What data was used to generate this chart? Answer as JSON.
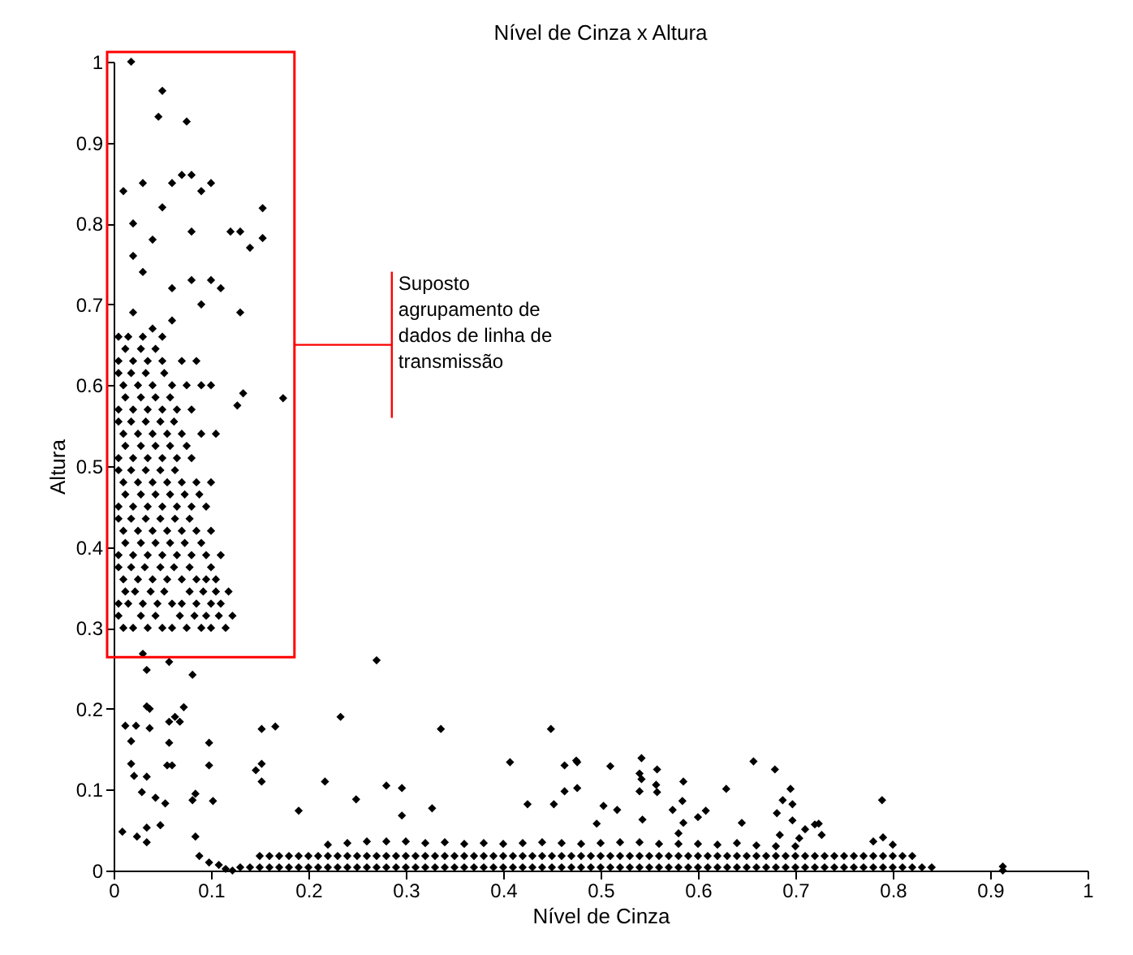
{
  "chart_data": {
    "type": "scatter",
    "title": "Nível de Cinza x Altura",
    "xlabel": "Nível de Cinza",
    "ylabel": "Altura",
    "xlim": [
      0,
      1
    ],
    "ylim": [
      0,
      1
    ],
    "xticks": [
      0,
      0.1,
      0.2,
      0.3,
      0.4,
      0.5,
      0.6,
      0.7,
      0.8,
      0.9,
      1
    ],
    "yticks": [
      0,
      0.1,
      0.2,
      0.3,
      0.4,
      0.5,
      0.6,
      0.7,
      0.8,
      0.9,
      1
    ],
    "grid": false,
    "legend": false,
    "marker": "diamond",
    "annotations": [
      "Suposto agrupamento de dados de linha de transmissão"
    ],
    "series": [
      {
        "color": "#000000",
        "x": [
          0.018,
          0.05,
          0.046,
          0.075,
          0.153,
          0.153,
          0.174,
          0.133,
          0.127,
          0.07,
          0.06,
          0.08,
          0.09,
          0.03,
          0.01,
          0.1,
          0.02,
          0.04,
          0.05,
          0.08,
          0.12,
          0.13,
          0.14,
          0.02,
          0.03,
          0.06,
          0.08,
          0.1,
          0.11,
          0.09,
          0.13,
          0.02,
          0.04,
          0.06,
          0.01,
          0.02,
          0.035,
          0.05,
          0.06,
          0.075,
          0.09,
          0.1,
          0.115,
          0.005,
          0.028,
          0.043,
          0.068,
          0.083,
          0.095,
          0.108,
          0.122,
          0.005,
          0.015,
          0.03,
          0.045,
          0.06,
          0.07,
          0.085,
          0.1,
          0.11,
          0.012,
          0.022,
          0.038,
          0.052,
          0.078,
          0.092,
          0.105,
          0.118,
          0.01,
          0.025,
          0.04,
          0.055,
          0.07,
          0.085,
          0.095,
          0.105,
          0.005,
          0.018,
          0.032,
          0.048,
          0.062,
          0.078,
          0.1,
          0.005,
          0.02,
          0.035,
          0.05,
          0.065,
          0.08,
          0.095,
          0.11,
          0.012,
          0.028,
          0.043,
          0.058,
          0.073,
          0.09,
          0.01,
          0.025,
          0.04,
          0.055,
          0.07,
          0.085,
          0.1,
          0.005,
          0.018,
          0.033,
          0.048,
          0.063,
          0.078,
          0.005,
          0.02,
          0.035,
          0.05,
          0.065,
          0.08,
          0.095,
          0.012,
          0.028,
          0.043,
          0.058,
          0.073,
          0.088,
          0.01,
          0.025,
          0.04,
          0.055,
          0.07,
          0.085,
          0.1,
          0.005,
          0.018,
          0.033,
          0.048,
          0.063,
          0.005,
          0.02,
          0.035,
          0.05,
          0.065,
          0.08,
          0.012,
          0.028,
          0.043,
          0.058,
          0.075,
          0.01,
          0.025,
          0.04,
          0.055,
          0.07,
          0.09,
          0.105,
          0.005,
          0.018,
          0.033,
          0.048,
          0.062,
          0.005,
          0.02,
          0.035,
          0.05,
          0.065,
          0.08,
          0.012,
          0.028,
          0.043,
          0.058,
          0.01,
          0.025,
          0.04,
          0.06,
          0.075,
          0.09,
          0.1,
          0.005,
          0.018,
          0.033,
          0.052,
          0.005,
          0.02,
          0.035,
          0.05,
          0.07,
          0.085,
          0.012,
          0.028,
          0.043,
          0.005,
          0.015,
          0.03,
          0.05
        ],
        "values": [
          1.0,
          0.964,
          0.932,
          0.926,
          0.819,
          0.782,
          0.584,
          0.59,
          0.575,
          0.86,
          0.85,
          0.86,
          0.84,
          0.85,
          0.84,
          0.85,
          0.8,
          0.78,
          0.82,
          0.79,
          0.79,
          0.79,
          0.77,
          0.76,
          0.74,
          0.72,
          0.73,
          0.73,
          0.72,
          0.7,
          0.69,
          0.69,
          0.67,
          0.68,
          0.3,
          0.3,
          0.3,
          0.3,
          0.3,
          0.3,
          0.3,
          0.3,
          0.3,
          0.315,
          0.315,
          0.315,
          0.315,
          0.315,
          0.315,
          0.315,
          0.315,
          0.33,
          0.33,
          0.33,
          0.33,
          0.33,
          0.33,
          0.33,
          0.33,
          0.33,
          0.345,
          0.345,
          0.345,
          0.345,
          0.345,
          0.345,
          0.345,
          0.345,
          0.36,
          0.36,
          0.36,
          0.36,
          0.36,
          0.36,
          0.36,
          0.36,
          0.375,
          0.375,
          0.375,
          0.375,
          0.375,
          0.375,
          0.375,
          0.39,
          0.39,
          0.39,
          0.39,
          0.39,
          0.39,
          0.39,
          0.39,
          0.405,
          0.405,
          0.405,
          0.405,
          0.405,
          0.405,
          0.42,
          0.42,
          0.42,
          0.42,
          0.42,
          0.42,
          0.42,
          0.435,
          0.435,
          0.435,
          0.435,
          0.435,
          0.435,
          0.45,
          0.45,
          0.45,
          0.45,
          0.45,
          0.45,
          0.45,
          0.465,
          0.465,
          0.465,
          0.465,
          0.465,
          0.465,
          0.48,
          0.48,
          0.48,
          0.48,
          0.48,
          0.48,
          0.48,
          0.495,
          0.495,
          0.495,
          0.495,
          0.495,
          0.51,
          0.51,
          0.51,
          0.51,
          0.51,
          0.51,
          0.525,
          0.525,
          0.525,
          0.525,
          0.525,
          0.54,
          0.54,
          0.54,
          0.54,
          0.54,
          0.54,
          0.54,
          0.555,
          0.555,
          0.555,
          0.555,
          0.555,
          0.57,
          0.57,
          0.57,
          0.57,
          0.57,
          0.57,
          0.585,
          0.585,
          0.585,
          0.585,
          0.6,
          0.6,
          0.6,
          0.6,
          0.6,
          0.6,
          0.6,
          0.615,
          0.615,
          0.615,
          0.615,
          0.63,
          0.63,
          0.63,
          0.63,
          0.63,
          0.63,
          0.645,
          0.645,
          0.645,
          0.66,
          0.66,
          0.66,
          0.66
        ]
      },
      {
        "color": "#000000",
        "x": [
          0.009,
          0.012,
          0.023,
          0.037,
          0.018,
          0.018,
          0.021,
          0.029,
          0.034,
          0.037,
          0.034,
          0.024,
          0.034,
          0.034,
          0.048,
          0.043,
          0.053,
          0.055,
          0.06,
          0.057,
          0.057,
          0.063,
          0.068,
          0.072,
          0.081,
          0.084,
          0.084,
          0.088,
          0.098,
          0.098,
          0.102,
          0.098,
          0.108,
          0.034,
          0.03,
          0.081,
          0.057,
          0.122,
          0.115,
          0.27,
          0.233,
          0.336,
          0.449,
          0.166,
          0.152,
          0.152,
          0.146,
          0.152,
          0.217,
          0.249,
          0.28,
          0.296,
          0.296,
          0.327,
          0.19,
          0.425,
          0.407,
          0.463,
          0.476,
          0.476,
          0.463,
          0.452,
          0.475,
          0.51,
          0.542,
          0.558,
          0.54,
          0.542,
          0.54,
          0.557,
          0.558,
          0.585,
          0.584,
          0.574,
          0.503,
          0.517,
          0.496,
          0.543,
          0.585,
          0.6,
          0.608,
          0.629,
          0.645,
          0.657,
          0.679,
          0.681,
          0.695,
          0.687,
          0.697,
          0.697,
          0.684,
          0.704,
          0.71,
          0.72,
          0.724,
          0.727,
          0.789,
          0.78,
          0.79,
          0.8,
          0.58,
          0.913,
          0.913
        ],
        "values": [
          0.048,
          0.179,
          0.179,
          0.176,
          0.16,
          0.132,
          0.117,
          0.097,
          0.116,
          0.2,
          0.203,
          0.042,
          0.053,
          0.035,
          0.056,
          0.09,
          0.083,
          0.13,
          0.13,
          0.158,
          0.184,
          0.19,
          0.184,
          0.202,
          0.087,
          0.095,
          0.042,
          0.018,
          0.158,
          0.13,
          0.086,
          0.01,
          0.007,
          0.248,
          0.268,
          0.242,
          0.258,
          0.0,
          0.002,
          0.26,
          0.19,
          0.175,
          0.175,
          0.178,
          0.175,
          0.132,
          0.124,
          0.11,
          0.11,
          0.088,
          0.105,
          0.102,
          0.068,
          0.077,
          0.074,
          0.082,
          0.134,
          0.13,
          0.134,
          0.102,
          0.098,
          0.082,
          0.136,
          0.129,
          0.139,
          0.125,
          0.12,
          0.113,
          0.098,
          0.106,
          0.097,
          0.11,
          0.086,
          0.075,
          0.08,
          0.075,
          0.058,
          0.063,
          0.059,
          0.066,
          0.074,
          0.101,
          0.059,
          0.135,
          0.125,
          0.071,
          0.101,
          0.087,
          0.082,
          0.062,
          0.044,
          0.04,
          0.051,
          0.057,
          0.058,
          0.044,
          0.087,
          0.036,
          0.041,
          0.032,
          0.046,
          0.005,
          0.0
        ]
      },
      {
        "color": "#000000",
        "x": [
          0.13,
          0.14,
          0.15,
          0.16,
          0.17,
          0.18,
          0.19,
          0.2,
          0.21,
          0.22,
          0.23,
          0.24,
          0.25,
          0.26,
          0.27,
          0.28,
          0.29,
          0.3,
          0.31,
          0.32,
          0.33,
          0.34,
          0.35,
          0.36,
          0.37,
          0.38,
          0.39,
          0.4,
          0.41,
          0.42,
          0.43,
          0.44,
          0.45,
          0.46,
          0.47,
          0.48,
          0.49,
          0.5,
          0.51,
          0.52,
          0.53,
          0.54,
          0.55,
          0.56,
          0.57,
          0.58,
          0.59,
          0.6,
          0.61,
          0.62,
          0.63,
          0.64,
          0.65,
          0.66,
          0.67,
          0.68,
          0.69,
          0.7,
          0.71,
          0.72,
          0.73,
          0.74,
          0.75,
          0.76,
          0.77,
          0.78,
          0.79,
          0.8,
          0.81,
          0.82,
          0.83,
          0.84,
          0.15,
          0.16,
          0.17,
          0.18,
          0.19,
          0.2,
          0.21,
          0.22,
          0.23,
          0.24,
          0.25,
          0.26,
          0.27,
          0.28,
          0.29,
          0.3,
          0.31,
          0.32,
          0.33,
          0.34,
          0.35,
          0.36,
          0.37,
          0.38,
          0.39,
          0.4,
          0.41,
          0.42,
          0.43,
          0.44,
          0.45,
          0.46,
          0.47,
          0.48,
          0.49,
          0.5,
          0.51,
          0.52,
          0.53,
          0.54,
          0.55,
          0.56,
          0.57,
          0.58,
          0.59,
          0.6,
          0.61,
          0.62,
          0.63,
          0.64,
          0.65,
          0.66,
          0.67,
          0.68,
          0.69,
          0.7,
          0.71,
          0.72,
          0.73,
          0.74,
          0.75,
          0.76,
          0.77,
          0.78,
          0.79,
          0.8,
          0.81,
          0.82,
          0.22,
          0.24,
          0.26,
          0.28,
          0.3,
          0.32,
          0.34,
          0.36,
          0.38,
          0.4,
          0.42,
          0.44,
          0.46,
          0.48,
          0.5,
          0.52,
          0.54,
          0.56,
          0.58,
          0.6,
          0.62,
          0.64,
          0.66,
          0.68,
          0.7
        ],
        "values": [
          0.004,
          0.004,
          0.004,
          0.004,
          0.004,
          0.004,
          0.004,
          0.004,
          0.004,
          0.004,
          0.004,
          0.004,
          0.004,
          0.004,
          0.004,
          0.004,
          0.004,
          0.004,
          0.004,
          0.004,
          0.004,
          0.004,
          0.004,
          0.004,
          0.004,
          0.004,
          0.004,
          0.004,
          0.004,
          0.004,
          0.004,
          0.004,
          0.004,
          0.004,
          0.004,
          0.004,
          0.004,
          0.004,
          0.004,
          0.004,
          0.004,
          0.004,
          0.004,
          0.004,
          0.004,
          0.004,
          0.004,
          0.004,
          0.004,
          0.004,
          0.004,
          0.004,
          0.004,
          0.004,
          0.004,
          0.004,
          0.004,
          0.004,
          0.004,
          0.004,
          0.004,
          0.004,
          0.004,
          0.004,
          0.004,
          0.004,
          0.004,
          0.004,
          0.004,
          0.004,
          0.004,
          0.004,
          0.018,
          0.018,
          0.018,
          0.018,
          0.018,
          0.018,
          0.018,
          0.018,
          0.018,
          0.018,
          0.018,
          0.018,
          0.018,
          0.018,
          0.018,
          0.018,
          0.018,
          0.018,
          0.018,
          0.018,
          0.018,
          0.018,
          0.018,
          0.018,
          0.018,
          0.018,
          0.018,
          0.018,
          0.018,
          0.018,
          0.018,
          0.018,
          0.018,
          0.018,
          0.018,
          0.018,
          0.018,
          0.018,
          0.018,
          0.018,
          0.018,
          0.018,
          0.018,
          0.018,
          0.018,
          0.018,
          0.018,
          0.018,
          0.018,
          0.018,
          0.018,
          0.018,
          0.018,
          0.018,
          0.018,
          0.018,
          0.018,
          0.018,
          0.018,
          0.018,
          0.018,
          0.018,
          0.018,
          0.018,
          0.018,
          0.018,
          0.018,
          0.018,
          0.032,
          0.034,
          0.036,
          0.036,
          0.036,
          0.034,
          0.035,
          0.033,
          0.034,
          0.033,
          0.034,
          0.035,
          0.034,
          0.033,
          0.034,
          0.035,
          0.035,
          0.033,
          0.033,
          0.033,
          0.032,
          0.034,
          0.031,
          0.03,
          0.03
        ]
      }
    ]
  }
}
